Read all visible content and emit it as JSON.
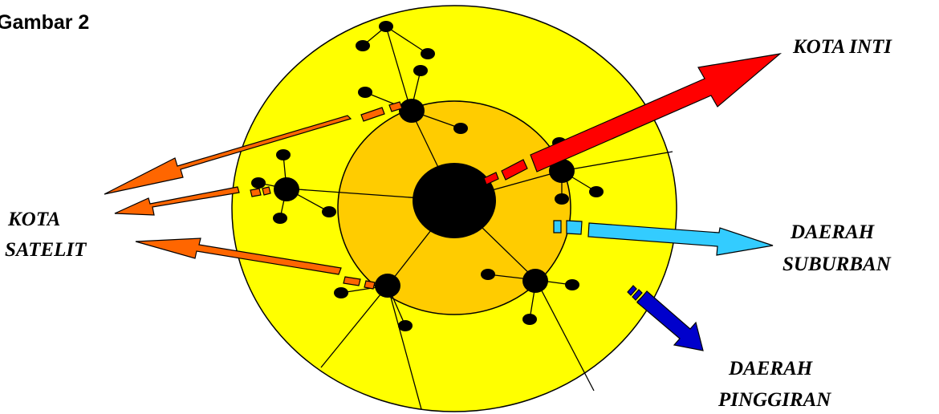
{
  "figure_title": "Gambar 2",
  "labels": {
    "kota_inti": "KOTA INTI",
    "kota_satelit": [
      "KOTA",
      "SATELIT"
    ],
    "daerah_suburban": [
      "DAERAH",
      "SUBURBAN"
    ],
    "daerah_pinggiran": [
      "DAERAH",
      "PINGGIRAN"
    ]
  },
  "colors": {
    "outer_ring": "#ffff00",
    "inner_ring": "#ffcc00",
    "kota_inti_arrow": "#ff0000",
    "kota_satelit_arrows": "#ff6600",
    "daerah_suburban_arrow": "#33ccff",
    "daerah_pinggiran_arrow": "#0000cc",
    "nodes": "#000000"
  }
}
